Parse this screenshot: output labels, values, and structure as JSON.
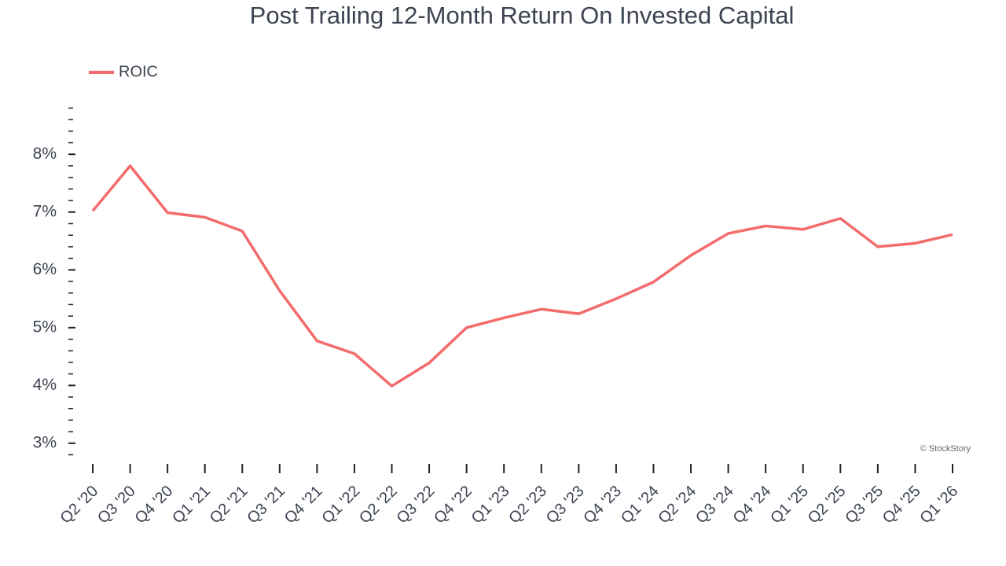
{
  "chart_data": {
    "type": "line",
    "title": "Post Trailing 12-Month Return On Invested Capital",
    "categories": [
      "Q2 '20",
      "Q3 '20",
      "Q4 '20",
      "Q1 '21",
      "Q2 '21",
      "Q3 '21",
      "Q4 '21",
      "Q1 '22",
      "Q2 '22",
      "Q3 '22",
      "Q4 '22",
      "Q1 '23",
      "Q2 '23",
      "Q3 '23",
      "Q4 '23",
      "Q1 '24",
      "Q2 '24",
      "Q3 '24",
      "Q4 '24",
      "Q1 '25",
      "Q2 '25",
      "Q3 '25",
      "Q4 '25",
      "Q1 '26"
    ],
    "series": [
      {
        "name": "ROIC",
        "color": "#f46b6b",
        "values": [
          7.02,
          7.8,
          6.99,
          6.91,
          6.67,
          5.64,
          4.77,
          4.55,
          3.99,
          4.39,
          5.0,
          5.17,
          5.32,
          5.24,
          5.5,
          5.79,
          6.25,
          6.63,
          6.76,
          6.7,
          6.89,
          6.4,
          6.46,
          6.61
        ]
      }
    ],
    "ylim": [
      2.78,
      8.82
    ],
    "yticks": [
      {
        "value": 3,
        "label": "3%"
      },
      {
        "value": 4,
        "label": "4%"
      },
      {
        "value": 5,
        "label": "5%"
      },
      {
        "value": 6,
        "label": "6%"
      },
      {
        "value": 7,
        "label": "7%"
      },
      {
        "value": 8,
        "label": "8%"
      }
    ],
    "yticks_minor": [
      2.8,
      3.2,
      3.4,
      3.6,
      3.8,
      4.2,
      4.4,
      4.6,
      4.8,
      5.2,
      5.4,
      5.6,
      5.8,
      6.2,
      6.4,
      6.6,
      6.8,
      7.2,
      7.4,
      7.6,
      7.8,
      8.2,
      8.4,
      8.6,
      8.8
    ],
    "legend": "top-left",
    "watermark": "© StockStory"
  }
}
